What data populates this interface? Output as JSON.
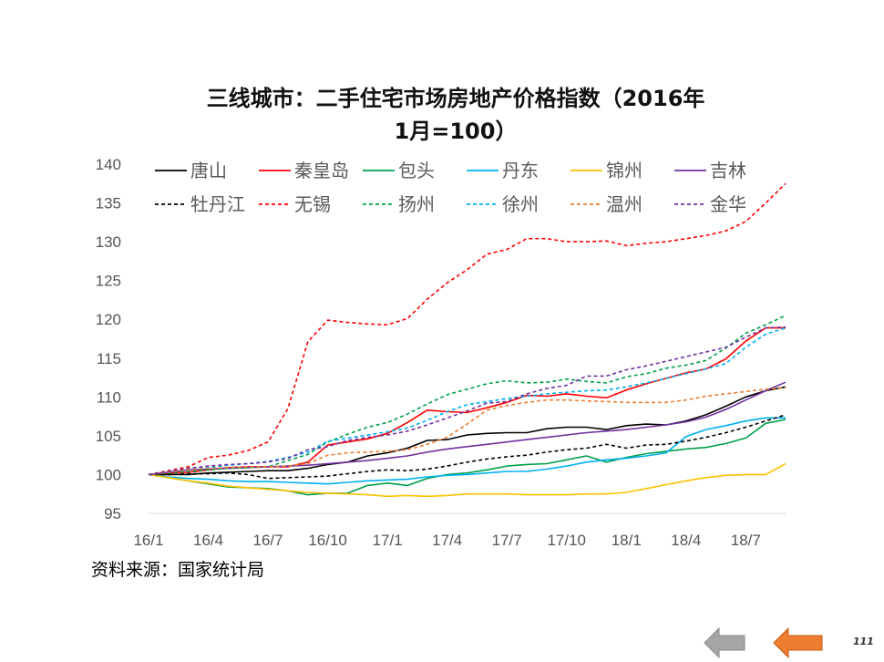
{
  "page": {
    "number": "111"
  },
  "source": "资料来源：国家统计局",
  "colors": {
    "axis_text": "#555555",
    "nav_gray": "#a6a6a6",
    "nav_orange": "#ed7d31"
  },
  "navigation": {
    "prev_icon": "left-arrow-gray",
    "next_icon": "left-arrow-orange"
  },
  "chart_data": {
    "type": "line",
    "title_lines": [
      "三线城市：二手住宅市场房地产价格指数（2016年",
      "1月=100）"
    ],
    "x": [
      "16/1",
      "16/2",
      "16/3",
      "16/4",
      "16/5",
      "16/6",
      "16/7",
      "16/8",
      "16/9",
      "16/10",
      "16/11",
      "16/12",
      "17/1",
      "17/2",
      "17/3",
      "17/4",
      "17/5",
      "17/6",
      "17/7",
      "17/8",
      "17/9",
      "17/10",
      "17/11",
      "17/12",
      "18/1",
      "18/2",
      "18/3",
      "18/4",
      "18/5",
      "18/6",
      "18/7",
      "18/8",
      "18/9"
    ],
    "x_tick_labels": [
      "16/1",
      "16/4",
      "16/7",
      "16/10",
      "17/1",
      "17/4",
      "17/7",
      "17/10",
      "18/1",
      "18/4",
      "18/7"
    ],
    "ylim": [
      95,
      140
    ],
    "y_ticks": [
      95,
      100,
      105,
      110,
      115,
      120,
      125,
      130,
      135,
      140
    ],
    "legend_position": "top",
    "series": [
      {
        "name": "唐山",
        "color": "#000000",
        "dash": "solid",
        "values": [
          100,
          100,
          100,
          100.2,
          100.3,
          100.4,
          100.5,
          100.5,
          100.8,
          101.3,
          101.6,
          102.4,
          102.8,
          103.4,
          104.4,
          104.5,
          105.1,
          105.3,
          105.4,
          105.4,
          105.9,
          106.1,
          106.1,
          105.8,
          106.3,
          106.5,
          106.4,
          106.9,
          107.7,
          108.8,
          110,
          110.8,
          111.3
        ]
      },
      {
        "name": "秦皇岛",
        "color": "#ff0000",
        "dash": "solid",
        "values": [
          100,
          100.2,
          100.3,
          100.6,
          100.9,
          101,
          101,
          101,
          101.6,
          103.8,
          104.2,
          104.6,
          105.3,
          106.7,
          108.3,
          108.1,
          108,
          108.6,
          109.3,
          110.2,
          110.1,
          110.4,
          110.1,
          109.9,
          110.9,
          111.7,
          112.4,
          113.1,
          113.6,
          114.9,
          117.2,
          118.9,
          118.9
        ]
      },
      {
        "name": "包头",
        "color": "#00a04b",
        "dash": "solid",
        "values": [
          100,
          99.6,
          99.2,
          98.8,
          98.4,
          98.3,
          98.2,
          97.9,
          97.4,
          97.6,
          97.6,
          98.6,
          98.9,
          98.6,
          99.5,
          100,
          100.2,
          100.6,
          101.1,
          101.3,
          101.4,
          101.9,
          102.4,
          101.6,
          102.2,
          102.7,
          103,
          103.3,
          103.5,
          104,
          104.7,
          106.6,
          107.1
        ]
      },
      {
        "name": "丹东",
        "color": "#00b0f0",
        "dash": "solid",
        "values": [
          100,
          99.7,
          99.5,
          99.4,
          99.2,
          99.1,
          99.1,
          99,
          98.9,
          98.8,
          99,
          99.2,
          99.3,
          99.4,
          99.7,
          99.9,
          100,
          100.2,
          100.4,
          100.4,
          100.7,
          101.1,
          101.6,
          101.9,
          102.1,
          102.4,
          102.8,
          104.9,
          105.8,
          106.3,
          106.9,
          107.3,
          107.3
        ]
      },
      {
        "name": "锦州",
        "color": "#ffc000",
        "dash": "solid",
        "values": [
          100,
          99.6,
          99.2,
          98.9,
          98.5,
          98.3,
          98.1,
          97.9,
          97.7,
          97.6,
          97.5,
          97.4,
          97.2,
          97.3,
          97.2,
          97.3,
          97.5,
          97.5,
          97.5,
          97.4,
          97.4,
          97.4,
          97.5,
          97.5,
          97.7,
          98.2,
          98.7,
          99.2,
          99.6,
          99.9,
          100,
          100,
          101.4
        ]
      },
      {
        "name": "吉林",
        "color": "#7030a0",
        "dash": "solid",
        "values": [
          100,
          100.3,
          100.6,
          100.7,
          100.8,
          100.9,
          101,
          101.1,
          101.2,
          101.4,
          101.6,
          101.8,
          102.1,
          102.4,
          102.9,
          103.3,
          103.6,
          103.9,
          104.2,
          104.5,
          104.8,
          105.1,
          105.4,
          105.6,
          105.8,
          106.1,
          106.4,
          106.8,
          107.4,
          108.4,
          109.6,
          110.8,
          111.9
        ]
      },
      {
        "name": "牡丹江",
        "color": "#000000",
        "dash": "dashed",
        "values": [
          100,
          100,
          100.1,
          100.1,
          100.2,
          100,
          99.5,
          99.6,
          99.7,
          99.8,
          100.1,
          100.4,
          100.6,
          100.5,
          100.7,
          101.1,
          101.6,
          102,
          102.3,
          102.5,
          102.9,
          103.2,
          103.4,
          103.9,
          103.4,
          103.8,
          103.9,
          104.3,
          104.8,
          105.4,
          106.1,
          106.9,
          107.7
        ]
      },
      {
        "name": "无锡",
        "color": "#ff0000",
        "dash": "dashed",
        "values": [
          100,
          100.5,
          101,
          102.2,
          102.5,
          103.1,
          104.2,
          108.5,
          117.1,
          119.9,
          119.6,
          119.4,
          119.3,
          120.1,
          122.6,
          124.7,
          126.4,
          128.4,
          129,
          130.4,
          130.4,
          130,
          130,
          130.1,
          129.5,
          129.8,
          130,
          130.4,
          130.8,
          131.4,
          132.6,
          135,
          137.5
        ]
      },
      {
        "name": "扬州",
        "color": "#00a04b",
        "dash": "dashed",
        "values": [
          100,
          100.2,
          100.4,
          100.6,
          100.8,
          100.9,
          101,
          101.8,
          102.6,
          104.2,
          105.2,
          106.1,
          106.7,
          107.8,
          109.1,
          110.3,
          111,
          111.7,
          112.1,
          111.8,
          111.9,
          112.3,
          112,
          111.8,
          112.6,
          113,
          113.7,
          114.1,
          114.7,
          116.3,
          118.2,
          119.3,
          120.5
        ]
      },
      {
        "name": "徐州",
        "color": "#00b0f0",
        "dash": "dashed",
        "values": [
          100,
          100.3,
          100.6,
          100.9,
          101.2,
          101.4,
          101.7,
          102.2,
          102.9,
          104.3,
          104.7,
          105.1,
          105.5,
          106,
          107,
          108.1,
          109,
          109.4,
          109.8,
          110.1,
          110.4,
          110.6,
          110.8,
          110.9,
          111.3,
          111.8,
          112.4,
          113,
          113.6,
          114.3,
          116.4,
          118.1,
          118.9
        ]
      },
      {
        "name": "温州",
        "color": "#ed7d31",
        "dash": "dashed",
        "values": [
          100,
          100.3,
          100.6,
          100.8,
          100.9,
          101,
          101,
          101.1,
          101.4,
          102.5,
          102.8,
          102.9,
          103,
          103.2,
          103.9,
          104.8,
          106.5,
          108.3,
          108.9,
          109.3,
          109.6,
          109.6,
          109.5,
          109.4,
          109.3,
          109.3,
          109.3,
          109.6,
          110.1,
          110.4,
          110.7,
          111,
          111.2
        ]
      },
      {
        "name": "金华",
        "color": "#7030a0",
        "dash": "dashed",
        "values": [
          100,
          100.4,
          100.8,
          101.1,
          101.3,
          101.4,
          101.6,
          102.1,
          103.2,
          103.6,
          104.4,
          104.8,
          105.1,
          105.6,
          106.4,
          107.3,
          108.2,
          109.2,
          109.4,
          110.4,
          111.1,
          111.5,
          112.7,
          112.7,
          113.5,
          114,
          114.6,
          115.2,
          115.8,
          116.4,
          117.7,
          118.9,
          119
        ]
      }
    ]
  }
}
